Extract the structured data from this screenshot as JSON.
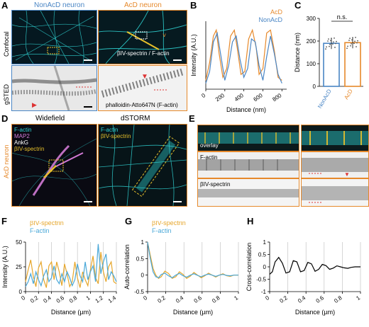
{
  "panels": {
    "A": {
      "letter": "A",
      "col1_title": "NonAcD neuron",
      "col2_title": "AcD neuron",
      "row1_label": "Confocal",
      "row2_label": "gSTED",
      "overlay_caption": "βIV-spectrin / F-actin",
      "sted_caption": "phalloidin-Atto647N (F-actin)",
      "colors": {
        "nonacd": "#4a86c5",
        "acd": "#e6892b",
        "cyan": "#2fd1d1"
      }
    },
    "B": {
      "letter": "B"
    },
    "C": {
      "letter": "C"
    },
    "D": {
      "letter": "D",
      "widefield_title": "Widefield",
      "dstorm_title": "dSTORM",
      "side_label": "AcD neuron",
      "legend_wf": [
        "F-actin",
        "MAP2",
        "AnkG",
        "βIV-spectrin"
      ],
      "legend_wf_colors": [
        "#2fd1d1",
        "#d17ad6",
        "#ffffff",
        "#e6c02b"
      ],
      "legend_storm": [
        "F-actin",
        "βIV-spectrin"
      ],
      "legend_storm_colors": [
        "#2fd1d1",
        "#e6c02b"
      ]
    },
    "E": {
      "letter": "E",
      "row_labels": [
        "overlay",
        "F-actin",
        "βIV-spectrin"
      ]
    },
    "F": {
      "letter": "F"
    },
    "G": {
      "letter": "G"
    },
    "H": {
      "letter": "H"
    }
  },
  "chart_data": [
    {
      "panel": "B",
      "type": "line",
      "xlabel": "Distance (nm)",
      "ylabel": "Intensity (A.U.)",
      "xlim": [
        0,
        850
      ],
      "xticks": [
        0,
        200,
        400,
        600,
        800
      ],
      "legend": "top-right",
      "series": [
        {
          "name": "AcD",
          "color": "#e6892b",
          "x": [
            0,
            40,
            80,
            110,
            140,
            180,
            220,
            260,
            300,
            330,
            370,
            410,
            450,
            490,
            530,
            560,
            600,
            640,
            680,
            720,
            760,
            800
          ],
          "y": [
            0.15,
            0.45,
            0.9,
            1.0,
            0.6,
            0.2,
            0.35,
            0.9,
            1.0,
            0.7,
            0.25,
            0.3,
            0.85,
            1.0,
            0.7,
            0.25,
            0.35,
            0.95,
            1.0,
            0.65,
            0.2,
            0.15
          ]
        },
        {
          "name": "NonAcD",
          "color": "#4a86c5",
          "x": [
            0,
            40,
            80,
            120,
            160,
            200,
            240,
            280,
            320,
            360,
            400,
            440,
            480,
            520,
            560,
            600,
            640,
            680,
            720,
            760,
            800
          ],
          "y": [
            0.1,
            0.3,
            0.8,
            0.95,
            0.55,
            0.15,
            0.4,
            0.8,
            0.9,
            0.5,
            0.2,
            0.35,
            0.85,
            0.8,
            0.4,
            0.15,
            0.55,
            0.9,
            0.6,
            0.25,
            0.1
          ]
        }
      ]
    },
    {
      "panel": "C",
      "type": "bar",
      "ylabel": "Distance (nm)",
      "ylim": [
        0,
        300
      ],
      "yticks": [
        0,
        100,
        200,
        300
      ],
      "categories": [
        "NonAcD",
        "AcD"
      ],
      "values": [
        190,
        193
      ],
      "colors": [
        "#4a86c5",
        "#e6892b"
      ],
      "annotation": "n.s."
    },
    {
      "panel": "F",
      "type": "line",
      "xlabel": "Distance (µm)",
      "ylabel": "Intensity (A.U.)",
      "xlim": [
        0,
        1.4
      ],
      "ylim": [
        0,
        50
      ],
      "xticks": [
        0,
        0.2,
        0.4,
        0.6,
        0.8,
        1.0,
        1.2,
        1.4
      ],
      "yticks": [
        0,
        25,
        50
      ],
      "legend": "top-left",
      "series": [
        {
          "name": "βIV-spectrin",
          "color": "#e6a62b",
          "x": [
            0,
            0.04,
            0.08,
            0.12,
            0.16,
            0.2,
            0.24,
            0.28,
            0.32,
            0.36,
            0.4,
            0.44,
            0.48,
            0.52,
            0.56,
            0.6,
            0.64,
            0.68,
            0.72,
            0.76,
            0.8,
            0.84,
            0.88,
            0.92,
            0.96,
            1.0,
            1.04,
            1.08,
            1.12,
            1.16,
            1.2,
            1.24,
            1.28,
            1.32,
            1.36,
            1.4
          ],
          "y": [
            10,
            22,
            32,
            15,
            5,
            24,
            30,
            12,
            4,
            26,
            30,
            12,
            30,
            20,
            6,
            28,
            18,
            5,
            10,
            30,
            14,
            4,
            20,
            12,
            6,
            22,
            36,
            14,
            8,
            40,
            20,
            10,
            25,
            30,
            10,
            8
          ]
        },
        {
          "name": "F-actin",
          "color": "#4aa8d8",
          "x": [
            0,
            0.04,
            0.08,
            0.12,
            0.16,
            0.2,
            0.24,
            0.28,
            0.32,
            0.36,
            0.4,
            0.44,
            0.48,
            0.52,
            0.56,
            0.6,
            0.64,
            0.68,
            0.72,
            0.76,
            0.8,
            0.84,
            0.88,
            0.92,
            0.96,
            1.0,
            1.04,
            1.08,
            1.12,
            1.16,
            1.2,
            1.24,
            1.28,
            1.32,
            1.36,
            1.4
          ],
          "y": [
            5,
            10,
            18,
            8,
            20,
            12,
            6,
            16,
            22,
            10,
            14,
            26,
            12,
            8,
            18,
            10,
            20,
            14,
            6,
            12,
            28,
            16,
            10,
            30,
            12,
            20,
            26,
            10,
            48,
            18,
            30,
            38,
            12,
            20,
            16,
            10
          ]
        }
      ]
    },
    {
      "panel": "G",
      "type": "line",
      "xlabel": "Distance (µm)",
      "ylabel": "Auto-correlation",
      "xlim": [
        0,
        1.0
      ],
      "ylim": [
        -0.5,
        1.0
      ],
      "xticks": [
        0,
        0.2,
        0.4,
        0.6,
        0.8,
        1.0
      ],
      "yticks": [
        -0.5,
        0,
        0.5,
        1
      ],
      "legend": "top-left",
      "series": [
        {
          "name": "βIV-spectrin",
          "color": "#e6a62b",
          "x": [
            0,
            0.03,
            0.06,
            0.09,
            0.12,
            0.15,
            0.19,
            0.23,
            0.27,
            0.31,
            0.35,
            0.39,
            0.43,
            0.47,
            0.51,
            0.55,
            0.59,
            0.63,
            0.67,
            0.71,
            0.75,
            0.79,
            0.83,
            0.87,
            0.91,
            0.95,
            1.0
          ],
          "y": [
            1.0,
            0.6,
            0.2,
            0.0,
            -0.1,
            -0.05,
            0.12,
            0.05,
            -0.1,
            -0.05,
            0.1,
            0.02,
            -0.1,
            -0.03,
            0.08,
            0.0,
            -0.08,
            -0.02,
            0.06,
            0.0,
            -0.06,
            0.0,
            0.04,
            -0.02,
            -0.04,
            0.0,
            0.0
          ]
        },
        {
          "name": "F-actin",
          "color": "#4aa8d8",
          "x": [
            0,
            0.03,
            0.06,
            0.09,
            0.12,
            0.15,
            0.19,
            0.23,
            0.27,
            0.31,
            0.35,
            0.39,
            0.43,
            0.47,
            0.51,
            0.55,
            0.59,
            0.63,
            0.67,
            0.71,
            0.75,
            0.79,
            0.83,
            0.87,
            0.91,
            0.95,
            1.0
          ],
          "y": [
            1.0,
            0.5,
            0.1,
            -0.05,
            -0.08,
            0.02,
            0.06,
            -0.02,
            -0.08,
            0.0,
            0.05,
            -0.02,
            -0.06,
            0.0,
            0.04,
            -0.01,
            -0.05,
            0.0,
            0.03,
            0.0,
            -0.04,
            0.0,
            0.02,
            -0.01,
            -0.02,
            0.0,
            0.0
          ]
        }
      ]
    },
    {
      "panel": "H",
      "type": "line",
      "xlabel": "Distance (µm)",
      "ylabel": "Cross-correlation",
      "xlim": [
        0,
        1.0
      ],
      "ylim": [
        -1,
        1
      ],
      "xticks": [
        0,
        0.2,
        0.4,
        0.6,
        0.8,
        1.0
      ],
      "yticks": [
        -1,
        -0.5,
        0,
        0.5,
        1
      ],
      "series": [
        {
          "color": "#000000",
          "x": [
            0,
            0.03,
            0.06,
            0.1,
            0.14,
            0.18,
            0.22,
            0.26,
            0.3,
            0.34,
            0.38,
            0.42,
            0.46,
            0.5,
            0.54,
            0.58,
            0.62,
            0.66,
            0.7,
            0.74,
            0.78,
            0.82,
            0.86,
            0.9,
            0.94,
            0.98,
            1.0
          ],
          "y": [
            -0.3,
            -0.2,
            0.2,
            0.38,
            0.15,
            -0.25,
            -0.2,
            0.25,
            0.2,
            -0.2,
            -0.15,
            0.18,
            0.12,
            -0.18,
            -0.1,
            0.1,
            0.05,
            -0.1,
            -0.05,
            0.04,
            0.0,
            -0.04,
            -0.06,
            -0.02,
            0.0,
            0.0,
            0.0
          ]
        }
      ]
    }
  ]
}
